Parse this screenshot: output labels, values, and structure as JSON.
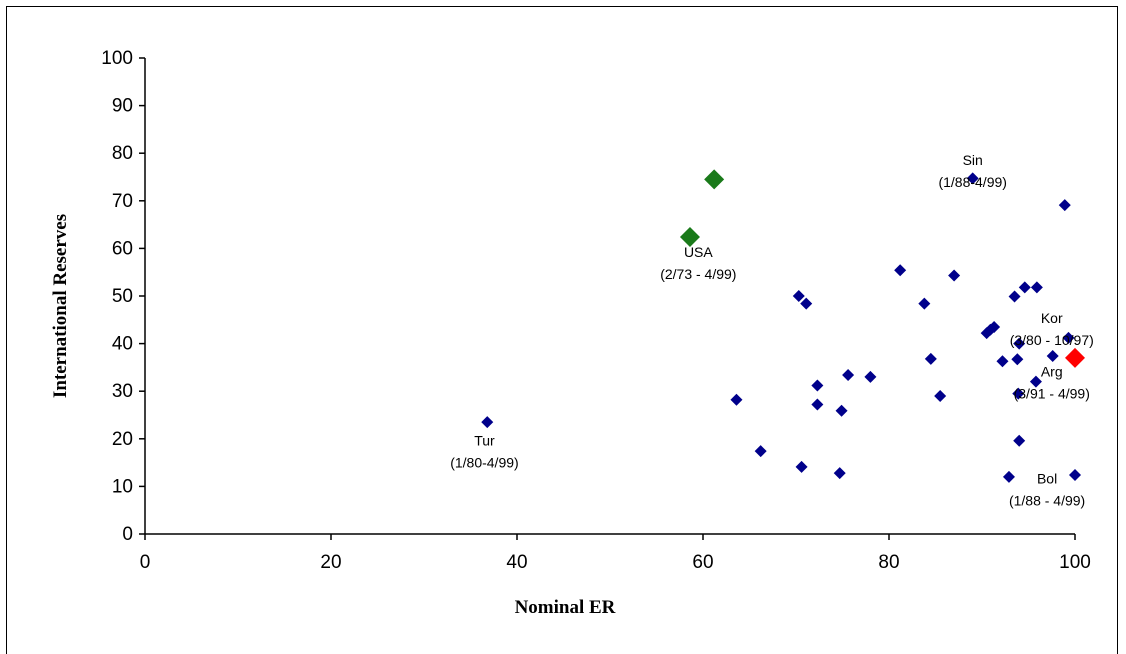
{
  "chart_data": {
    "type": "scatter",
    "title": "",
    "xlabel": "Nominal ER",
    "ylabel": "International Reserves",
    "xlim": [
      0,
      100
    ],
    "ylim": [
      0,
      100
    ],
    "xticks": [
      "0",
      "20",
      "40",
      "60",
      "80",
      "100"
    ],
    "yticks": [
      "0",
      "10",
      "20",
      "30",
      "40",
      "50",
      "60",
      "70",
      "80",
      "90",
      "100"
    ],
    "grid": false,
    "colors": {
      "blue": "#00008b",
      "green": "#1a7a1a",
      "red": "#ff0000"
    },
    "series": [
      {
        "color": "blue",
        "points": [
          {
            "x": 36.8,
            "y": 23.5
          },
          {
            "x": 63.6,
            "y": 28.2
          },
          {
            "x": 66.2,
            "y": 17.4
          },
          {
            "x": 70.3,
            "y": 50.0
          },
          {
            "x": 71.1,
            "y": 48.4
          },
          {
            "x": 70.6,
            "y": 14.1
          },
          {
            "x": 72.3,
            "y": 31.2
          },
          {
            "x": 72.3,
            "y": 27.2
          },
          {
            "x": 74.7,
            "y": 12.8
          },
          {
            "x": 74.9,
            "y": 25.9
          },
          {
            "x": 75.6,
            "y": 33.4
          },
          {
            "x": 78.0,
            "y": 33.0
          },
          {
            "x": 81.2,
            "y": 55.4
          },
          {
            "x": 83.8,
            "y": 48.4
          },
          {
            "x": 84.5,
            "y": 36.8
          },
          {
            "x": 85.5,
            "y": 29.0
          },
          {
            "x": 87.0,
            "y": 54.3
          },
          {
            "x": 89.0,
            "y": 74.7
          },
          {
            "x": 90.5,
            "y": 42.2
          },
          {
            "x": 90.9,
            "y": 42.9
          },
          {
            "x": 91.3,
            "y": 43.5
          },
          {
            "x": 92.2,
            "y": 36.3
          },
          {
            "x": 92.9,
            "y": 12.0
          },
          {
            "x": 93.5,
            "y": 49.9
          },
          {
            "x": 93.8,
            "y": 36.7
          },
          {
            "x": 94.0,
            "y": 40.0
          },
          {
            "x": 93.9,
            "y": 29.5
          },
          {
            "x": 94.0,
            "y": 19.6
          },
          {
            "x": 94.6,
            "y": 51.8
          },
          {
            "x": 95.9,
            "y": 51.8
          },
          {
            "x": 95.8,
            "y": 32.0
          },
          {
            "x": 97.6,
            "y": 37.4
          },
          {
            "x": 98.9,
            "y": 69.1
          },
          {
            "x": 99.3,
            "y": 41.2
          },
          {
            "x": 100.0,
            "y": 12.4
          }
        ]
      },
      {
        "color": "green",
        "points": [
          {
            "x": 61.2,
            "y": 74.5
          },
          {
            "x": 58.6,
            "y": 62.4
          }
        ]
      },
      {
        "color": "red",
        "points": [
          {
            "x": 100.0,
            "y": 37.0
          }
        ]
      }
    ],
    "annotations": [
      {
        "name": "sin",
        "lines": [
          "Sin",
          "(1/88-4/99)"
        ],
        "x": 89.0,
        "y": 77.5
      },
      {
        "name": "usa",
        "lines": [
          "USA",
          "(2/73 - 4/99)"
        ],
        "x": 59.5,
        "y": 58.2
      },
      {
        "name": "kor",
        "lines": [
          "Kor",
          "(3/80 - 10/97)"
        ],
        "x": 97.5,
        "y": 44.3
      },
      {
        "name": "arg",
        "lines": [
          "Arg",
          "(3/91 - 4/99)"
        ],
        "x": 97.5,
        "y": 33.1
      },
      {
        "name": "tur",
        "lines": [
          "Tur",
          "(1/80-4/99)"
        ],
        "x": 36.5,
        "y": 18.6
      },
      {
        "name": "bol",
        "lines": [
          "Bol",
          "(1/88 - 4/99)"
        ],
        "x": 97.0,
        "y": 10.6
      }
    ]
  }
}
